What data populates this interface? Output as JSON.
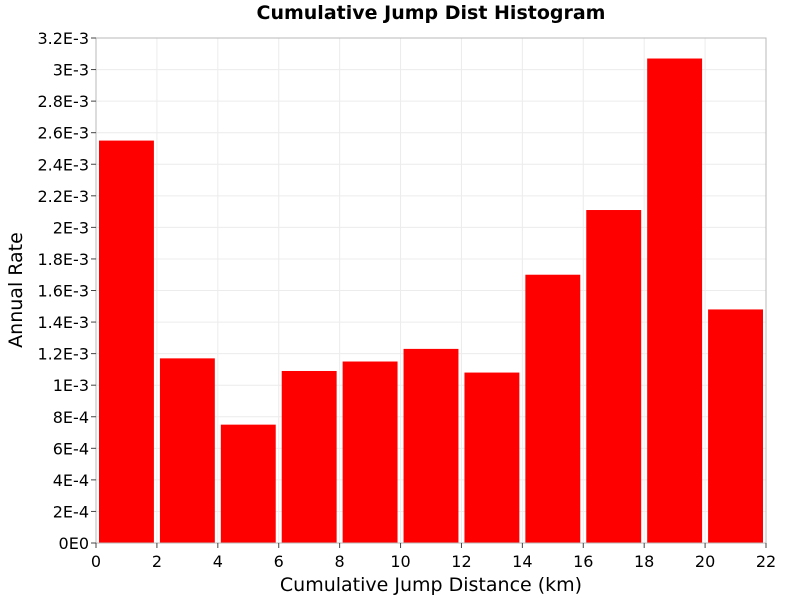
{
  "chart_data": {
    "type": "bar",
    "title": "Cumulative Jump Dist Histogram",
    "xlabel": "Cumulative Jump Distance (km)",
    "ylabel": "Annual Rate",
    "xlim": [
      0,
      22
    ],
    "ylim": [
      0,
      0.0032
    ],
    "x_ticks": [
      0,
      2,
      4,
      6,
      8,
      10,
      12,
      14,
      16,
      18,
      20,
      22
    ],
    "x_tick_labels": [
      "0",
      "2",
      "4",
      "6",
      "8",
      "10",
      "12",
      "14",
      "16",
      "18",
      "20",
      "22"
    ],
    "y_ticks": [
      0,
      0.0002,
      0.0004,
      0.0006,
      0.0008,
      0.001,
      0.0012,
      0.0014,
      0.0016,
      0.0018,
      0.002,
      0.0022,
      0.0024,
      0.0026,
      0.0028,
      0.003,
      0.0032
    ],
    "y_tick_labels": [
      "0E0",
      "2E-4",
      "4E-4",
      "6E-4",
      "8E-4",
      "1E-3",
      "1.2E-3",
      "1.4E-3",
      "1.6E-3",
      "1.8E-3",
      "2E-3",
      "2.2E-3",
      "2.4E-3",
      "2.6E-3",
      "2.8E-3",
      "3E-3",
      "3.2E-3"
    ],
    "grid": true,
    "bar_color": "#ff0000",
    "bins": [
      {
        "x0": 0,
        "x1": 2,
        "value": 0.00255
      },
      {
        "x0": 2,
        "x1": 4,
        "value": 0.00117
      },
      {
        "x0": 4,
        "x1": 6,
        "value": 0.00075
      },
      {
        "x0": 6,
        "x1": 8,
        "value": 0.00109
      },
      {
        "x0": 8,
        "x1": 10,
        "value": 0.00115
      },
      {
        "x0": 10,
        "x1": 12,
        "value": 0.00123
      },
      {
        "x0": 12,
        "x1": 14,
        "value": 0.00108
      },
      {
        "x0": 14,
        "x1": 16,
        "value": 0.0017
      },
      {
        "x0": 16,
        "x1": 18,
        "value": 0.00211
      },
      {
        "x0": 18,
        "x1": 20,
        "value": 0.00307
      },
      {
        "x0": 20,
        "x1": 22,
        "value": 0.00148
      }
    ]
  }
}
